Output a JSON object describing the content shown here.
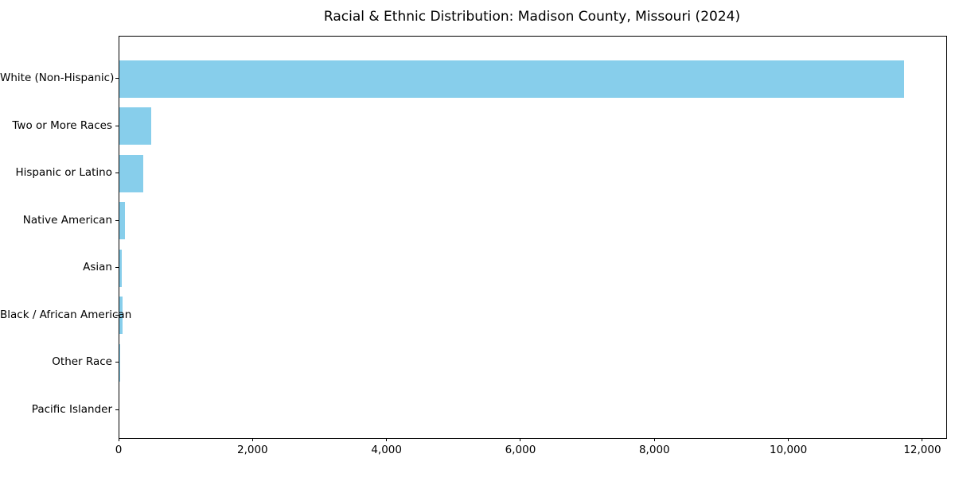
{
  "chart_data": {
    "type": "bar",
    "orientation": "horizontal",
    "title": "Racial & Ethnic Distribution: Madison County, Missouri (2024)",
    "categories": [
      "White (Non-Hispanic)",
      "Two or More Races",
      "Hispanic or Latino",
      "Native American",
      "Asian",
      "Black / African American",
      "Other Race",
      "Pacific Islander"
    ],
    "values": [
      11720,
      475,
      355,
      80,
      35,
      45,
      10,
      0
    ],
    "xlabel": "",
    "ylabel": "",
    "xlim": [
      0,
      12345
    ],
    "x_ticks": [
      0,
      2000,
      4000,
      6000,
      8000,
      10000,
      12000
    ],
    "x_tick_labels": [
      "0",
      "2,000",
      "4,000",
      "6,000",
      "8,000",
      "10,000",
      "12,000"
    ],
    "bar_color": "#87CEEB",
    "grid": false,
    "legend_position": "none"
  }
}
